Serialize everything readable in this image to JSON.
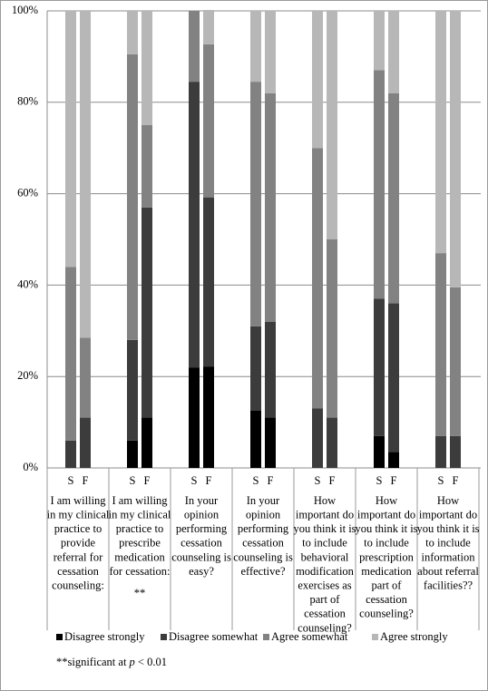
{
  "chart_data": {
    "type": "bar",
    "stacked": true,
    "categories": [
      "S",
      "F",
      "S",
      "F",
      "S",
      "F",
      "S",
      "F",
      "S",
      "F",
      "S",
      "F",
      "S",
      "F"
    ],
    "groups": [
      [
        "I am willing",
        "in my clinical",
        "practice to",
        "provide",
        "referral for",
        "cessation",
        "counseling:"
      ],
      [
        "I am willing",
        "in my clinical",
        "practice to",
        "prescribe",
        "medication",
        "for cessation:"
      ],
      [
        "In your",
        "opinion",
        "performing",
        "cessation",
        "counseling is",
        "easy?"
      ],
      [
        "In your",
        "opinion",
        "performing",
        "cessation",
        "counseling is",
        "effective?"
      ],
      [
        "How",
        "important do",
        "you think it is",
        "to include",
        "behavioral",
        "modification",
        "exercises as",
        "part of",
        "cessation",
        "counseling?"
      ],
      [
        "How",
        "important do",
        "you think it is",
        "to include",
        "prescription",
        "medication",
        "part of",
        "cessation",
        "counseling?"
      ],
      [
        "How",
        "important do",
        "you think it is",
        "to include",
        "information",
        "about referral",
        "facilities??"
      ]
    ],
    "group_notes": [
      null,
      "**",
      null,
      null,
      null,
      null,
      null
    ],
    "series": [
      {
        "name": "Disagree strongly",
        "color": "#000000",
        "values": [
          0,
          0,
          6,
          11,
          22,
          22.2,
          12.5,
          11,
          0,
          0,
          7,
          3.5,
          0,
          0
        ]
      },
      {
        "name": "Disagree somewhat",
        "color": "#3c3c3c",
        "values": [
          6,
          11,
          22,
          46,
          62.5,
          37,
          18.5,
          21,
          13,
          11,
          30,
          32.5,
          7,
          7
        ]
      },
      {
        "name": "Agree somewhat",
        "color": "#828282",
        "values": [
          38,
          17.5,
          62.5,
          18,
          15.5,
          33.5,
          53.5,
          50,
          57,
          39,
          50,
          46,
          40,
          32.5
        ]
      },
      {
        "name": "Agree strongly",
        "color": "#b7b7b7",
        "values": [
          56,
          71.5,
          9.5,
          25,
          0,
          7.5,
          15.5,
          18,
          30,
          50,
          13,
          18,
          53,
          60.5
        ]
      }
    ],
    "ylim": [
      0,
      100
    ],
    "yticks": [
      {
        "value": 0,
        "label": "0%"
      },
      {
        "value": 20,
        "label": "20%"
      },
      {
        "value": 40,
        "label": "40%"
      },
      {
        "value": 60,
        "label": "60%"
      },
      {
        "value": 80,
        "label": "80%"
      },
      {
        "value": 100,
        "label": "100%"
      }
    ],
    "grid": true,
    "legend": "bottom",
    "footnote": [
      "**significant at ",
      "p",
      " < 0.01"
    ]
  }
}
